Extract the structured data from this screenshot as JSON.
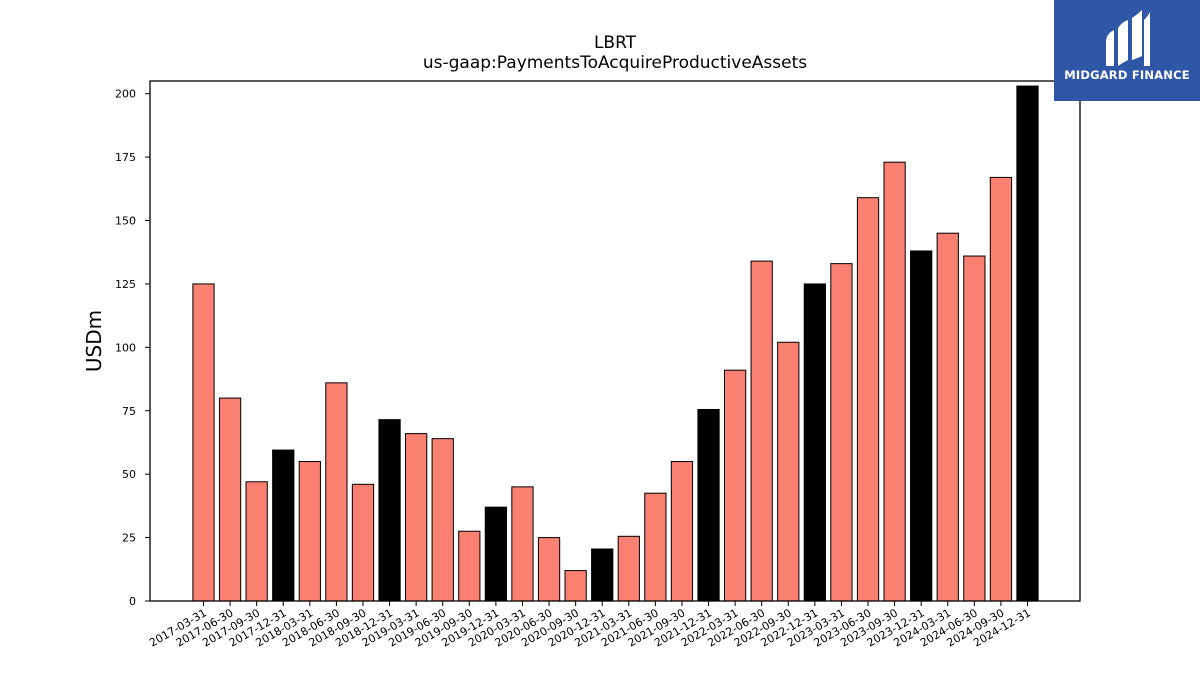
{
  "header": {
    "title": "LBRT",
    "subtitle": "us-gaap:PaymentsToAcquireProductiveAssets"
  },
  "brand": {
    "name": "MIDGARD FINANCE",
    "icon": "midgard-logo-icon",
    "background_color": "#2f57a8"
  },
  "chart_data": {
    "type": "bar",
    "title": "LBRT",
    "subtitle": "us-gaap:PaymentsToAcquireProductiveAssets",
    "xlabel": "",
    "ylabel": "USDm",
    "ylim": [
      0,
      205
    ],
    "yticks": [
      0,
      25,
      50,
      75,
      100,
      125,
      150,
      175,
      200
    ],
    "grid": false,
    "categories": [
      "2017-03-31",
      "2017-06-30",
      "2017-09-30",
      "2017-12-31",
      "2018-03-31",
      "2018-06-30",
      "2018-09-30",
      "2018-12-31",
      "2019-03-31",
      "2019-06-30",
      "2019-09-30",
      "2019-12-31",
      "2020-03-31",
      "2020-06-30",
      "2020-09-30",
      "2020-12-31",
      "2021-03-31",
      "2021-06-30",
      "2021-09-30",
      "2021-12-31",
      "2022-03-31",
      "2022-06-30",
      "2022-09-30",
      "2022-12-31",
      "2023-03-31",
      "2023-06-30",
      "2023-09-30",
      "2023-12-31",
      "2024-03-31",
      "2024-06-30",
      "2024-09-30",
      "2024-12-31"
    ],
    "values": [
      125,
      80,
      47,
      59.5,
      55,
      86,
      46,
      71.5,
      66,
      64,
      27.5,
      37,
      45,
      25,
      12,
      20.5,
      25.5,
      42.5,
      55,
      75.5,
      91,
      134,
      102,
      125,
      133,
      159,
      173,
      138,
      145,
      136,
      167,
      203
    ],
    "bar_colors": {
      "quarter": "#fa8072",
      "year_end": "#000000",
      "edge": "#000000"
    }
  }
}
